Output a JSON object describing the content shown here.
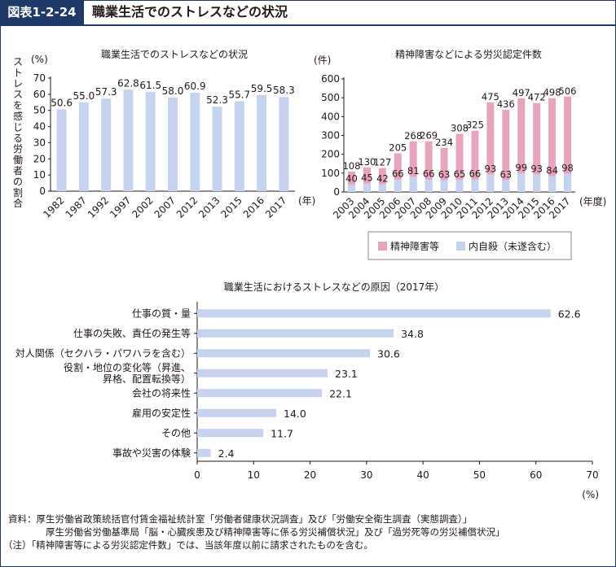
{
  "header": {
    "badge": "図表1-2-24",
    "title": "職業生活でのストレスなどの状況"
  },
  "colors": {
    "accent": "#1f3a66",
    "bar_blue": "#c5d3ee",
    "bar_pink": "#e8a4be"
  },
  "chart_data": [
    {
      "type": "bar",
      "title": "職業生活でのストレスなどの状況",
      "ylabel": "ストレスを感じる労働者の割合",
      "yunit": "(%)",
      "xunit": "(年)",
      "categories": [
        "1982",
        "1987",
        "1992",
        "1997",
        "2002",
        "2007",
        "2012",
        "2013",
        "2015",
        "2016",
        "2017"
      ],
      "values": [
        50.6,
        55.0,
        57.3,
        62.8,
        61.5,
        58.0,
        60.9,
        52.3,
        55.7,
        59.5,
        58.3
      ],
      "value_labels": [
        "50.6",
        "55.0",
        "57.3",
        "62.8",
        "61.5",
        "58.0",
        "60.9",
        "52.3",
        "55.7",
        "59.5",
        "58.3"
      ],
      "ylim": [
        0,
        70
      ],
      "yticks": [
        0,
        10,
        20,
        30,
        40,
        50,
        60,
        70
      ],
      "grid": false
    },
    {
      "type": "bar",
      "stacked": true,
      "title": "精神障害などによる労災認定件数",
      "yunit": "(件)",
      "xunit": "(年度)",
      "categories": [
        "2003",
        "2004",
        "2005",
        "2006",
        "2007",
        "2008",
        "2009",
        "2010",
        "2011",
        "2012",
        "2013",
        "2014",
        "2015",
        "2016",
        "2017"
      ],
      "series": [
        {
          "name": "内自殺（未遂含む）",
          "values": [
            40,
            45,
            42,
            66,
            81,
            66,
            63,
            65,
            66,
            93,
            63,
            99,
            93,
            84,
            98
          ]
        },
        {
          "name": "精神障害等",
          "values": [
            108,
            130,
            127,
            205,
            268,
            269,
            234,
            308,
            325,
            475,
            436,
            497,
            472,
            498,
            506
          ]
        }
      ],
      "ylim": [
        0,
        600
      ],
      "yticks": [
        0,
        100,
        200,
        300,
        400,
        500,
        600
      ],
      "legend": "bottom-right",
      "grid": false
    },
    {
      "type": "bar",
      "orientation": "horizontal",
      "title": "職業生活におけるストレスなどの原因（2017年）",
      "xunit": "(%)",
      "categories": [
        "仕事の質・量",
        "仕事の失敗、責任の発生等",
        "対人関係（セクハラ・パワハラを含む）",
        "役割・地位の変化等（昇進、昇格、配置転換等）",
        "会社の将来性",
        "雇用の安定性",
        "その他",
        "事故や災害の体験"
      ],
      "category_lines": [
        [
          "仕事の質・量"
        ],
        [
          "仕事の失敗、責任の発生等"
        ],
        [
          "対人関係（セクハラ・パワハラを含む）"
        ],
        [
          "役割・地位の変化等（昇進、",
          "昇格、配置転換等）"
        ],
        [
          "会社の将来性"
        ],
        [
          "雇用の安定性"
        ],
        [
          "その他"
        ],
        [
          "事故や災害の体験"
        ]
      ],
      "values": [
        62.6,
        34.8,
        30.6,
        23.1,
        22.1,
        14.0,
        11.7,
        2.4
      ],
      "value_labels": [
        "62.6",
        "34.8",
        "30.6",
        "23.1",
        "22.1",
        "14.0",
        "11.7",
        "2.4"
      ],
      "xlim": [
        0,
        70
      ],
      "xticks": [
        0,
        10,
        20,
        30,
        40,
        50,
        60,
        70
      ],
      "grid": false
    }
  ],
  "notes": {
    "source_line1": "資料：厚生労働省政策統括官付賃金福祉統計室「労働者健康状況調査」及び「労働安全衛生調査（実態調査）」",
    "source_line2": "厚生労働省労働基準局「脳・心臓疾患及び精神障害等に係る労災補償状況」及び「過労死等の労災補償状況」",
    "note_line": "（注）「精神障害等による労災認定件数」では、当該年度以前に請求されたものを含む。"
  }
}
